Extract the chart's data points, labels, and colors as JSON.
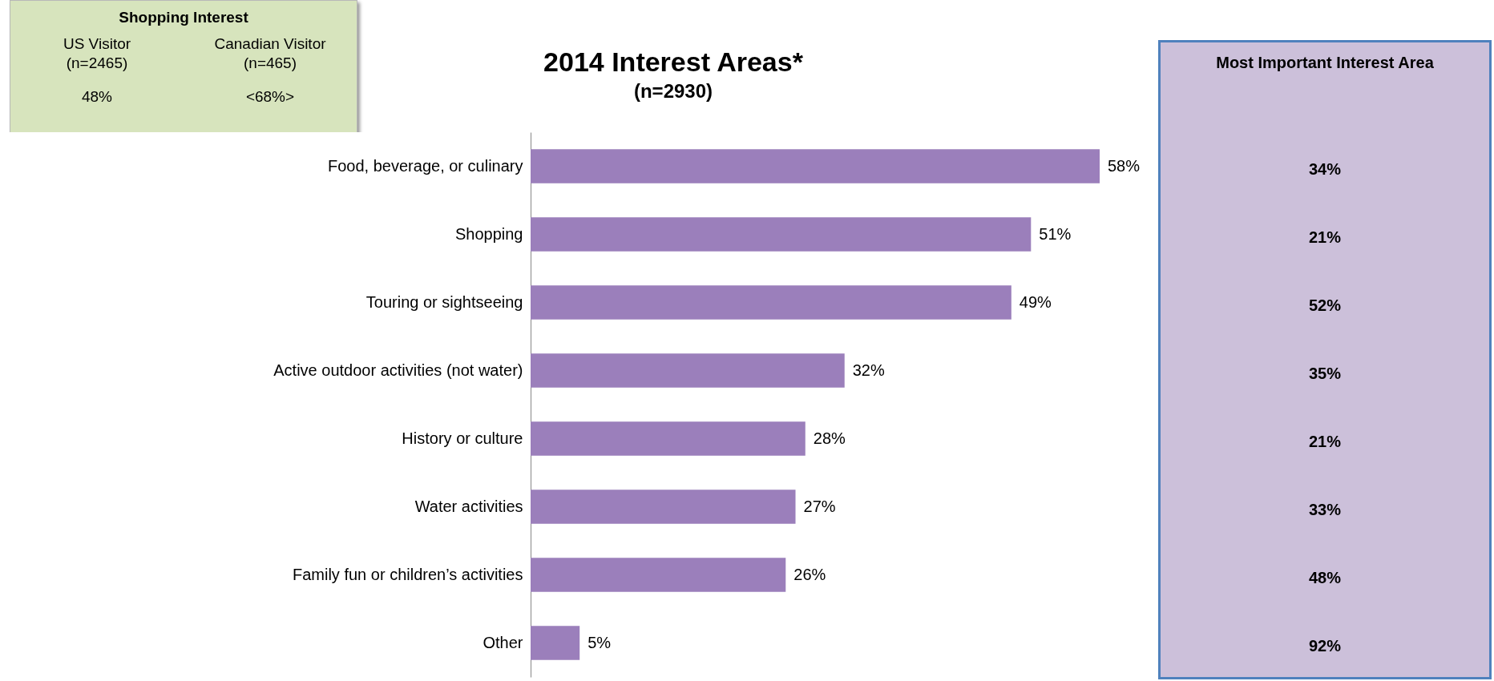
{
  "chart_data": [
    {
      "type": "other",
      "title": "Shopping Interest",
      "categories": [
        "US Visitor\n(n=2465)",
        "Canadian Visitor\n(n=465)"
      ],
      "value_labels": [
        "48%",
        "<68%>"
      ],
      "color": "#d7e4bd"
    },
    {
      "type": "bar",
      "orientation": "horizontal",
      "title": "2014 Interest Areas*",
      "subtitle": "(n=2930)",
      "categories": [
        "Food, beverage, or culinary",
        "Shopping",
        "Touring or sightseeing",
        "Active outdoor activities (not water)",
        "History or culture",
        "Water activities",
        "Family fun or children’s activities",
        "Other"
      ],
      "values": [
        58,
        51,
        49,
        32,
        28,
        27,
        26,
        5
      ],
      "value_labels": [
        "58%",
        "51%",
        "49%",
        "32%",
        "28%",
        "27%",
        "26%",
        "5%"
      ],
      "color": "#9b7fbb"
    },
    {
      "type": "other",
      "title": "Most Important Interest Area",
      "value_labels": [
        "34%",
        "21%",
        "52%",
        "35%",
        "21%",
        "33%",
        "48%",
        "92%"
      ],
      "color": "#ccc0da"
    }
  ]
}
